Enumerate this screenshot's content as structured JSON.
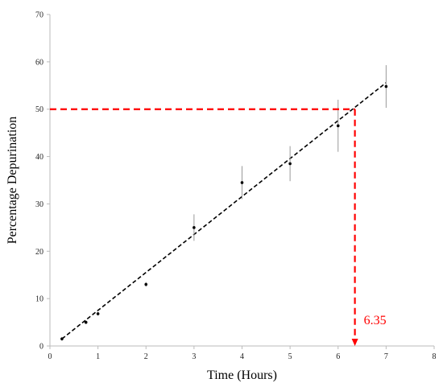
{
  "chart_data": {
    "type": "scatter",
    "title": "",
    "xlabel": "Time (Hours)",
    "ylabel": "Percentage Depurination",
    "xlim": [
      0,
      8
    ],
    "ylim": [
      0,
      70
    ],
    "xticks": [
      "0",
      "1",
      "2",
      "3",
      "4",
      "5",
      "6",
      "7",
      "8"
    ],
    "yticks": [
      "0",
      "10",
      "20",
      "30",
      "40",
      "50",
      "60",
      "70"
    ],
    "grid": false,
    "legend": "none",
    "points": [
      {
        "x": 0.25,
        "y": 1.5,
        "err": 0.4
      },
      {
        "x": 0.75,
        "y": 5.0,
        "err": 0.4
      },
      {
        "x": 1.0,
        "y": 6.8,
        "err": 0.4
      },
      {
        "x": 2.0,
        "y": 13.0,
        "err": 0.5
      },
      {
        "x": 3.0,
        "y": 25.0,
        "err": 2.8
      },
      {
        "x": 4.0,
        "y": 34.5,
        "err": 3.5
      },
      {
        "x": 5.0,
        "y": 38.5,
        "err": 3.7
      },
      {
        "x": 6.0,
        "y": 46.5,
        "err": 5.5
      },
      {
        "x": 7.0,
        "y": 54.8,
        "err": 4.5
      }
    ],
    "trendline": {
      "x": [
        0.25,
        7.0
      ],
      "y": [
        1.5,
        55.6
      ],
      "style": "dashed",
      "color": "#000000"
    },
    "reference": {
      "y": 50,
      "x": 6.35,
      "label": "6.35",
      "color": "#ff0000"
    }
  }
}
